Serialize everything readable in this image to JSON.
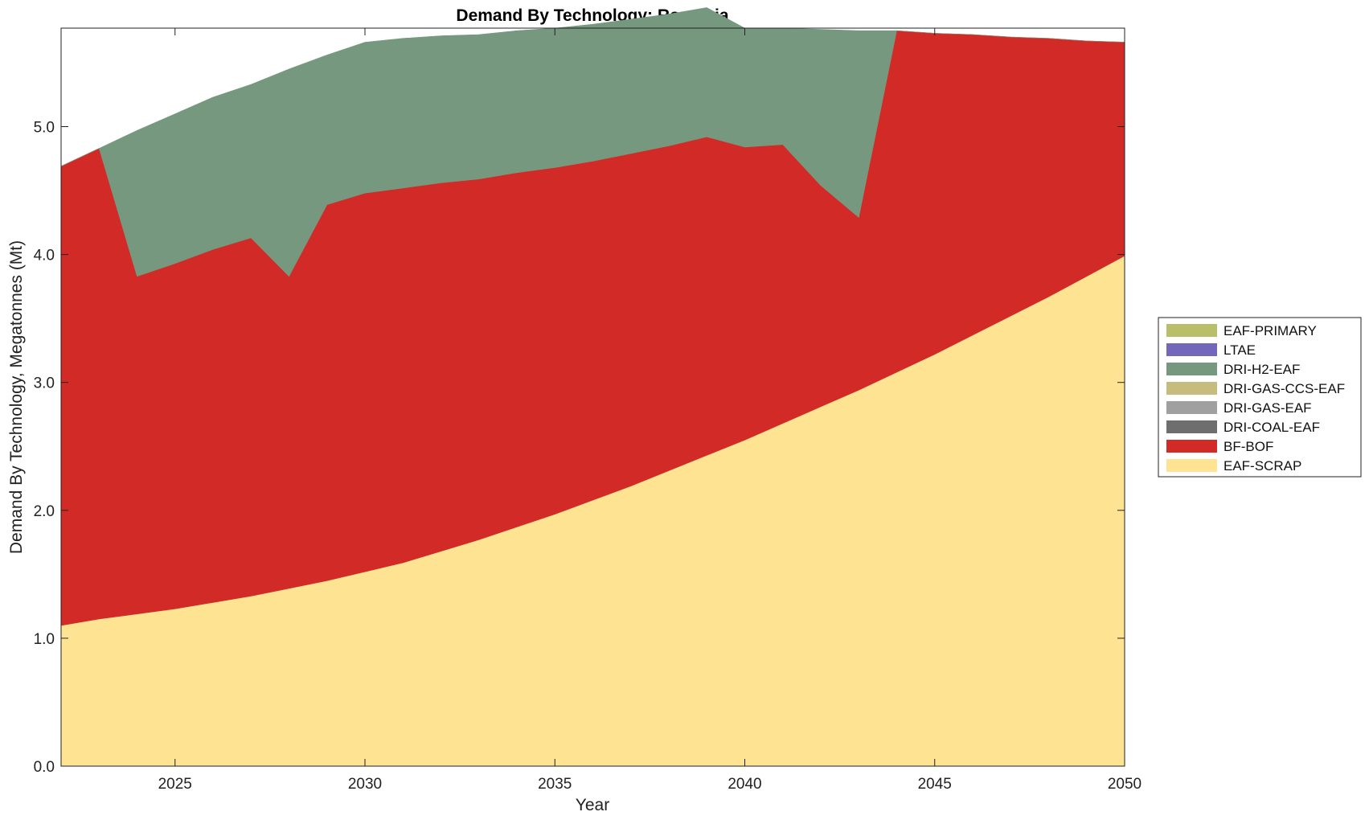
{
  "chart_data": {
    "type": "area",
    "stacked": true,
    "title": "Demand By Technology: Romania",
    "xlabel": "Year",
    "ylabel": "Demand By Technology, Megatonnes (Mt)",
    "xlim": [
      2022,
      2050
    ],
    "ylim": [
      0,
      5.77
    ],
    "xticks": [
      2025,
      2030,
      2035,
      2040,
      2045,
      2050
    ],
    "yticks": [
      0.0,
      1.0,
      2.0,
      3.0,
      4.0,
      5.0
    ],
    "ytick_labels": [
      "0.0",
      "1.0",
      "2.0",
      "3.0",
      "4.0",
      "5.0"
    ],
    "grid": false,
    "legend_position": "right",
    "x": [
      2022,
      2023,
      2024,
      2025,
      2026,
      2027,
      2028,
      2029,
      2030,
      2031,
      2032,
      2033,
      2034,
      2035,
      2036,
      2037,
      2038,
      2039,
      2040,
      2041,
      2042,
      2043,
      2044,
      2045,
      2046,
      2047,
      2048,
      2049,
      2050
    ],
    "series": [
      {
        "name": "EAF-SCRAP",
        "color": "#FDE392",
        "values": [
          1.1,
          1.15,
          1.19,
          1.23,
          1.28,
          1.33,
          1.39,
          1.45,
          1.52,
          1.59,
          1.68,
          1.77,
          1.87,
          1.97,
          2.08,
          2.19,
          2.31,
          2.43,
          2.55,
          2.68,
          2.81,
          2.94,
          3.08,
          3.22,
          3.37,
          3.52,
          3.67,
          3.83,
          3.99
        ]
      },
      {
        "name": "BF-BOF",
        "color": "#D22A26",
        "values": [
          3.59,
          3.68,
          2.64,
          2.7,
          2.76,
          2.8,
          2.44,
          2.94,
          2.96,
          2.93,
          2.88,
          2.82,
          2.77,
          2.71,
          2.65,
          2.6,
          2.54,
          2.49,
          2.29,
          2.18,
          1.73,
          1.35,
          2.67,
          2.51,
          2.35,
          2.18,
          2.02,
          1.84,
          1.67
        ]
      },
      {
        "name": "DRI-COAL-EAF",
        "color": "#6E6E6E",
        "values": [
          0,
          0,
          0,
          0,
          0,
          0,
          0,
          0,
          0,
          0,
          0,
          0,
          0,
          0,
          0,
          0,
          0,
          0,
          0,
          0,
          0,
          0,
          0,
          0,
          0,
          0,
          0,
          0,
          0
        ]
      },
      {
        "name": "DRI-GAS-EAF",
        "color": "#A0A0A0",
        "values": [
          0,
          0,
          0,
          0,
          0,
          0,
          0,
          0,
          0,
          0,
          0,
          0,
          0,
          0,
          0,
          0,
          0,
          0,
          0,
          0,
          0,
          0,
          0,
          0,
          0,
          0,
          0,
          0,
          0
        ]
      },
      {
        "name": "DRI-GAS-CCS-EAF",
        "color": "#C6BC7E",
        "values": [
          0,
          0,
          0,
          0,
          0,
          0,
          0,
          0,
          0,
          0,
          0,
          0,
          0,
          0,
          0,
          0,
          0,
          0,
          0,
          0,
          0,
          0,
          0,
          0,
          0,
          0,
          0,
          0,
          0
        ]
      },
      {
        "name": "DRI-H2-EAF",
        "color": "#76987E",
        "values": [
          0,
          0,
          1.14,
          1.17,
          1.19,
          1.2,
          1.62,
          1.17,
          1.18,
          1.17,
          1.15,
          1.13,
          1.11,
          1.09,
          1.07,
          1.05,
          1.03,
          1.01,
          0.93,
          0.91,
          1.22,
          1.46,
          0,
          0,
          0,
          0,
          0,
          0,
          0
        ]
      },
      {
        "name": "LTAE",
        "color": "#7367BB",
        "values": [
          0,
          0,
          0,
          0,
          0,
          0,
          0,
          0,
          0,
          0,
          0,
          0,
          0,
          0,
          0,
          0,
          0,
          0,
          0,
          0,
          0,
          0,
          0,
          0,
          0,
          0,
          0,
          0,
          0
        ]
      },
      {
        "name": "EAF-PRIMARY",
        "color": "#B9BF68",
        "values": [
          0,
          0,
          0,
          0,
          0,
          0,
          0,
          0,
          0,
          0,
          0,
          0,
          0,
          0,
          0,
          0,
          0,
          0,
          0,
          0,
          0,
          0,
          0,
          0,
          0,
          0,
          0,
          0,
          0
        ]
      }
    ]
  }
}
